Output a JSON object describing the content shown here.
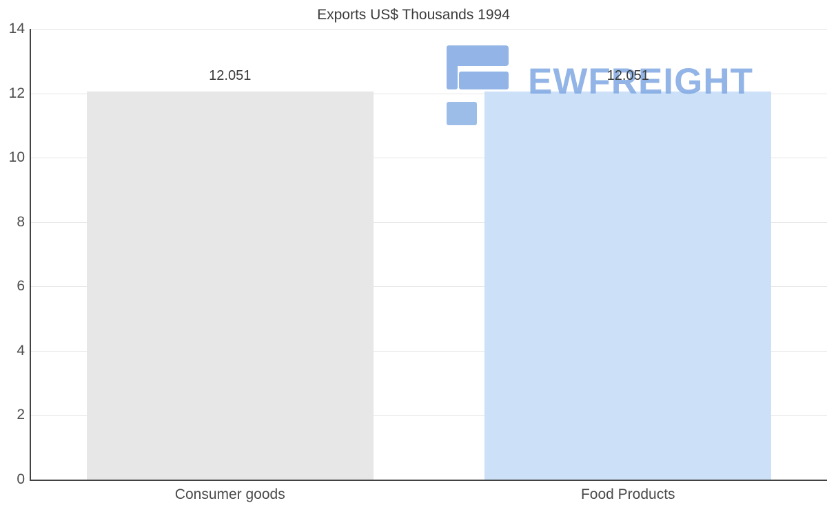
{
  "chart_data": {
    "type": "bar",
    "title": "Exports US$ Thousands 1994",
    "categories": [
      "Consumer goods",
      "Food Products"
    ],
    "values": [
      12.051,
      12.051
    ],
    "value_labels": [
      "12.051",
      "12.051"
    ],
    "ylim": [
      0,
      14
    ],
    "yticks": [
      0,
      2,
      4,
      6,
      8,
      10,
      12,
      14
    ],
    "grid": true,
    "legend": "none",
    "bar_colors": [
      "#e7e7e7",
      "#cce0f7"
    ]
  },
  "watermark": {
    "text": "EWFREIGHT",
    "color": "#7fa8e2"
  }
}
